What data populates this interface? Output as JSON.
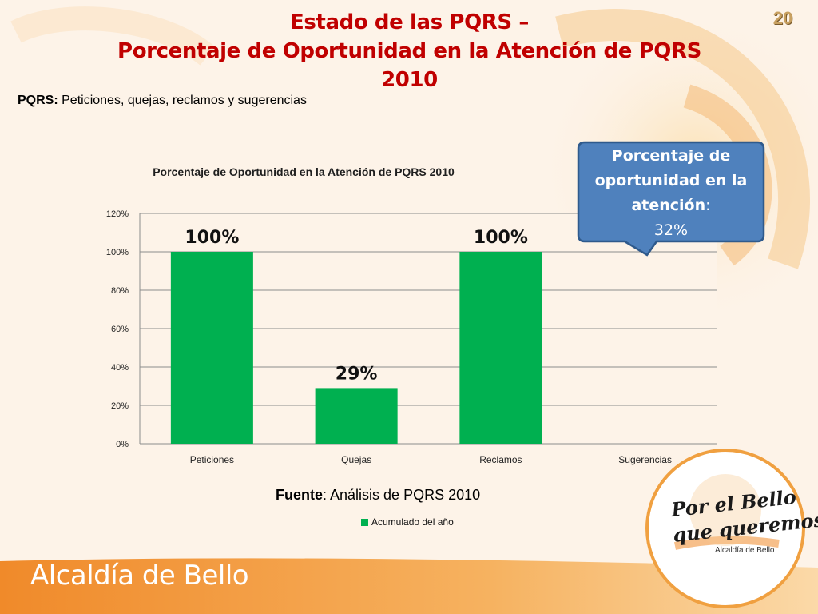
{
  "slide": {
    "number": "20",
    "title_line1": "Estado de las PQRS –",
    "title_line2": "Porcentaje de Oportunidad en la Atención de PQRS",
    "title_line3": "2010",
    "subtitle_label": "PQRS:",
    "subtitle_text": " Peticiones, quejas, reclamos y sugerencias"
  },
  "callout": {
    "heading_line1": "Porcentaje de",
    "heading_line2": "oportunidad en la",
    "heading_line3": "atención",
    "heading_colon": ":",
    "value": "32%"
  },
  "source": {
    "label": "Fuente",
    "text": ": Análisis de PQRS 2010"
  },
  "footer": {
    "brand": "Alcaldía de Bello"
  },
  "logo": {
    "line1": "Por el Bello",
    "line2": "que queremos",
    "sub": "Alcaldía de Bello"
  },
  "colors": {
    "title": "#c00000",
    "bar": "#00b050",
    "callout": "#4f81bd",
    "footer": "#f0a040"
  },
  "chart_data": {
    "type": "bar",
    "title": "Porcentaje de Oportunidad en la Atención de PQRS 2010",
    "categories": [
      "Peticiones",
      "Quejas",
      "Reclamos",
      "Sugerencias"
    ],
    "series": [
      {
        "name": "Acumulado del año",
        "values": [
          1.0,
          0.29,
          1.0,
          null
        ],
        "labels": [
          "100%",
          "29%",
          "100%",
          ""
        ]
      }
    ],
    "ylim": [
      0,
      1.2
    ],
    "yticks": [
      "0%",
      "20%",
      "40%",
      "60%",
      "80%",
      "100%",
      "120%"
    ],
    "grid": true,
    "legend": "bottom"
  }
}
